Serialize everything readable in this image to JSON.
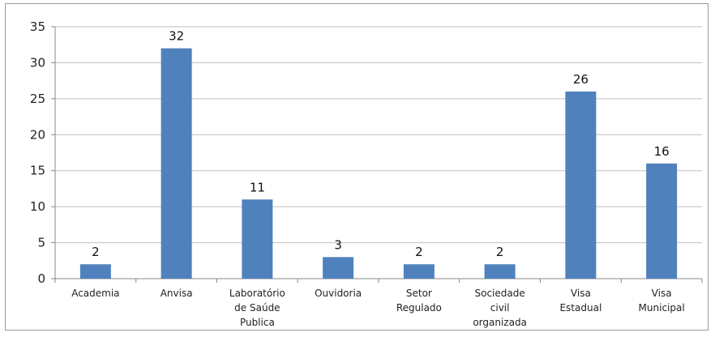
{
  "chart_data": {
    "type": "bar",
    "categories": [
      [
        "Academia"
      ],
      [
        "Anvisa"
      ],
      [
        "Laboratório",
        "de Saúde",
        "Publica"
      ],
      [
        "Ouvidoria"
      ],
      [
        "Setor",
        "Regulado"
      ],
      [
        "Sociedade",
        "civil",
        "organizada"
      ],
      [
        "Visa",
        "Estadual"
      ],
      [
        "Visa",
        "Municipal"
      ]
    ],
    "values": [
      2,
      32,
      11,
      3,
      2,
      2,
      26,
      16
    ],
    "data_labels": [
      "2",
      "32",
      "11",
      "3",
      "2",
      "2",
      "26",
      "16"
    ],
    "yticks": [
      "0",
      "5",
      "10",
      "15",
      "20",
      "25",
      "30",
      "35"
    ],
    "ylim": [
      0,
      35
    ],
    "grid": true,
    "bar_color": "#4f81bd",
    "grid_color": "#bfbfbf"
  }
}
